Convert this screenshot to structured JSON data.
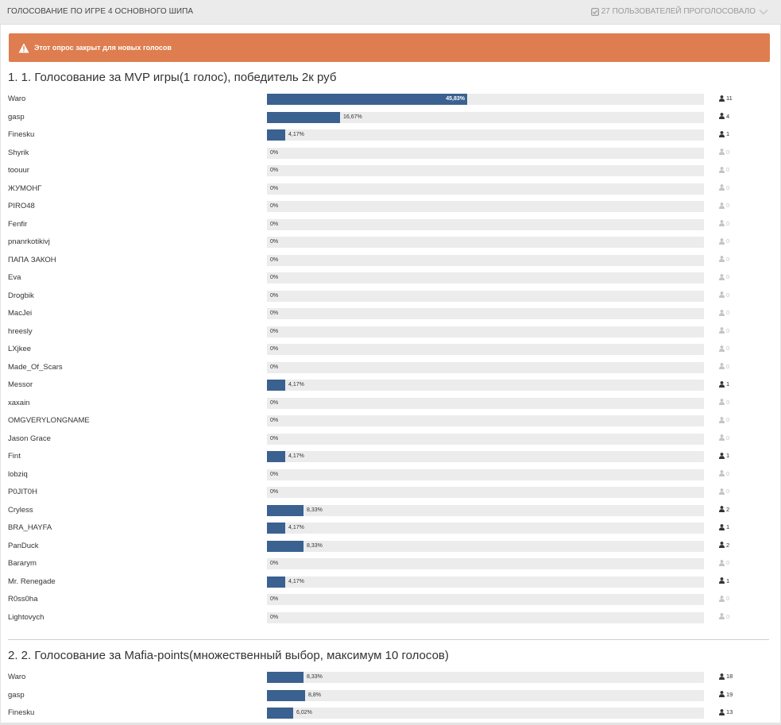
{
  "header": {
    "title": "ГОЛОСОВАНИЕ ПО ИГРЕ 4 ОСНОВНОГО ШИПА",
    "voters": "27 ПОЛЬЗОВАТЕЛЕЙ ПРОГОЛОСОВАЛО",
    "check_icon": "check-square-icon",
    "chevron_icon": "chevron-down-icon"
  },
  "alert": {
    "text": "Этот опрос закрыт для новых голосов",
    "icon": "warning-icon",
    "color": "#de7d4f"
  },
  "colors": {
    "bar": "#3a6190",
    "track": "#ececec"
  },
  "questions": [
    {
      "title": "1. 1. Голосование за MVP игры(1 голос), победитель 2к руб",
      "options": [
        {
          "name": "Waro",
          "percent": 45.83,
          "percent_label": "45,83%",
          "votes": "11"
        },
        {
          "name": "gasp",
          "percent": 16.67,
          "percent_label": "16,67%",
          "votes": "4"
        },
        {
          "name": "Finesku",
          "percent": 4.17,
          "percent_label": "4,17%",
          "votes": "1"
        },
        {
          "name": "Shyrik",
          "percent": 0,
          "percent_label": "0%",
          "votes": "0"
        },
        {
          "name": "toouur",
          "percent": 0,
          "percent_label": "0%",
          "votes": "0"
        },
        {
          "name": "ЖУМОНГ",
          "percent": 0,
          "percent_label": "0%",
          "votes": "0"
        },
        {
          "name": "PIRO48",
          "percent": 0,
          "percent_label": "0%",
          "votes": "0"
        },
        {
          "name": "Fenfir",
          "percent": 0,
          "percent_label": "0%",
          "votes": "0"
        },
        {
          "name": "pnanrkotikivj",
          "percent": 0,
          "percent_label": "0%",
          "votes": "0"
        },
        {
          "name": "ПАПА ЗАКОН",
          "percent": 0,
          "percent_label": "0%",
          "votes": "0"
        },
        {
          "name": "Eva",
          "percent": 0,
          "percent_label": "0%",
          "votes": "0"
        },
        {
          "name": "Drogbik",
          "percent": 0,
          "percent_label": "0%",
          "votes": "0"
        },
        {
          "name": "MacJei",
          "percent": 0,
          "percent_label": "0%",
          "votes": "0"
        },
        {
          "name": "hreesly",
          "percent": 0,
          "percent_label": "0%",
          "votes": "0"
        },
        {
          "name": "LXjkee",
          "percent": 0,
          "percent_label": "0%",
          "votes": "0"
        },
        {
          "name": "Made_Of_Scars",
          "percent": 0,
          "percent_label": "0%",
          "votes": "0"
        },
        {
          "name": "Messor",
          "percent": 4.17,
          "percent_label": "4,17%",
          "votes": "1"
        },
        {
          "name": "xaxain",
          "percent": 0,
          "percent_label": "0%",
          "votes": "0"
        },
        {
          "name": "OMGVERYLONGNAME",
          "percent": 0,
          "percent_label": "0%",
          "votes": "0"
        },
        {
          "name": "Jason Grace",
          "percent": 0,
          "percent_label": "0%",
          "votes": "0"
        },
        {
          "name": "Fint",
          "percent": 4.17,
          "percent_label": "4,17%",
          "votes": "1"
        },
        {
          "name": "lobziq",
          "percent": 0,
          "percent_label": "0%",
          "votes": "0"
        },
        {
          "name": "P0JIT0H",
          "percent": 0,
          "percent_label": "0%",
          "votes": "0"
        },
        {
          "name": "Cryless",
          "percent": 8.33,
          "percent_label": "8,33%",
          "votes": "2"
        },
        {
          "name": "BRA_HAYFA",
          "percent": 4.17,
          "percent_label": "4,17%",
          "votes": "1"
        },
        {
          "name": "PanDuck",
          "percent": 8.33,
          "percent_label": "8,33%",
          "votes": "2"
        },
        {
          "name": "Bararym",
          "percent": 0,
          "percent_label": "0%",
          "votes": "0"
        },
        {
          "name": "Mr. Renegade",
          "percent": 4.17,
          "percent_label": "4,17%",
          "votes": "1"
        },
        {
          "name": "R0ss0ha",
          "percent": 0,
          "percent_label": "0%",
          "votes": "0"
        },
        {
          "name": "Lightovych",
          "percent": 0,
          "percent_label": "0%",
          "votes": "0"
        }
      ]
    },
    {
      "title": "2. 2. Голосование за Mafia-points(множественный выбор, максимум 10 голосов)",
      "options": [
        {
          "name": "Waro",
          "percent": 8.33,
          "percent_label": "8,33%",
          "votes": "18"
        },
        {
          "name": "gasp",
          "percent": 8.8,
          "percent_label": "8,8%",
          "votes": "19"
        },
        {
          "name": "Finesku",
          "percent": 6.02,
          "percent_label": "6,02%",
          "votes": "13"
        }
      ]
    }
  ]
}
